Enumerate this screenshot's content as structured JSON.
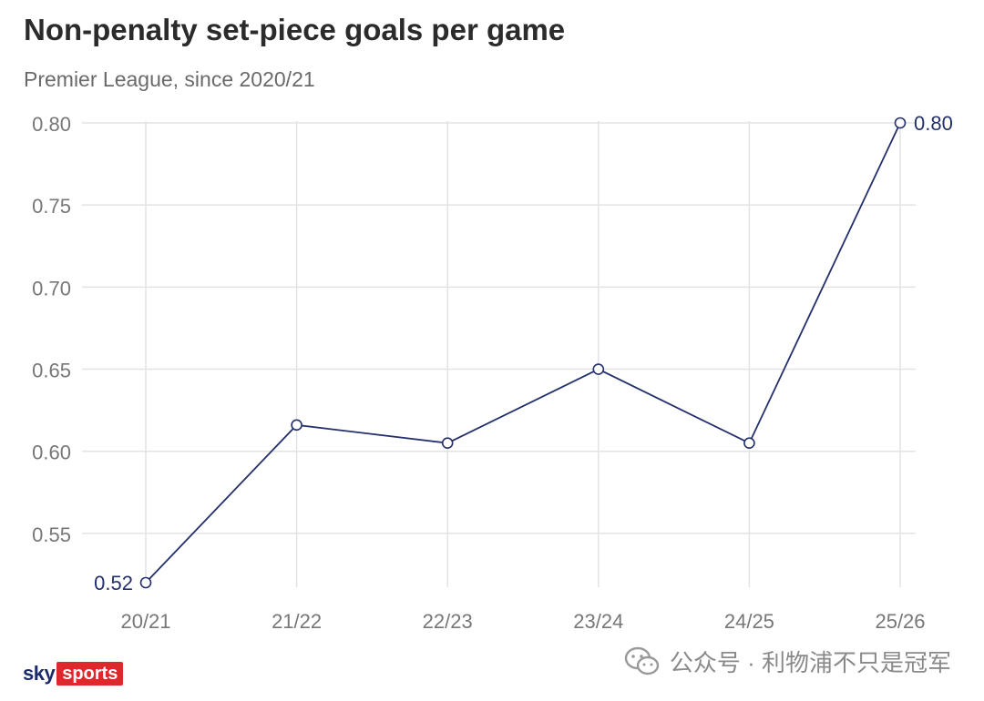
{
  "header": {
    "title": "Non-penalty set-piece goals per game",
    "subtitle": "Premier League, since 2020/21"
  },
  "chart_data": {
    "type": "line",
    "title": "Non-penalty set-piece goals per game",
    "subtitle": "Premier League, since 2020/21",
    "xlabel": "",
    "ylabel": "",
    "categories": [
      "20/21",
      "21/22",
      "22/23",
      "23/24",
      "24/25",
      "25/26"
    ],
    "series": [
      {
        "values": [
          0.52,
          0.616,
          0.605,
          0.65,
          0.605,
          0.8
        ]
      }
    ],
    "ylim": [
      0.52,
      0.8
    ],
    "yticks": [
      0.55,
      0.6,
      0.65,
      0.7,
      0.75,
      0.8
    ],
    "ytick_labels": [
      "0.55",
      "0.60",
      "0.65",
      "0.70",
      "0.75",
      "0.80"
    ],
    "data_labels": [
      {
        "index": 0,
        "text": "0.52"
      },
      {
        "index": 5,
        "text": "0.80"
      }
    ],
    "grid": true,
    "line_color": "#23306b",
    "grid_color": "#e3e3e3"
  },
  "footer": {
    "logo_sky": "sky",
    "logo_sports": "sports",
    "watermark_text": "公众号 · 利物浦不只是冠军"
  }
}
